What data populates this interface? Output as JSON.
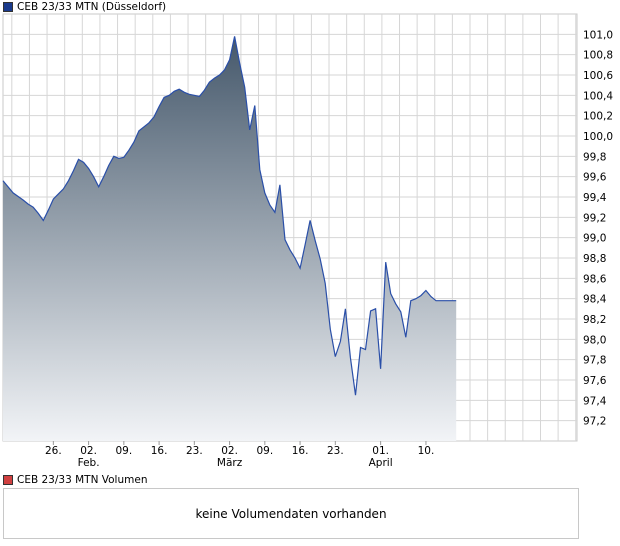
{
  "colors": {
    "price_swatch": "#1a3a8c",
    "volume_swatch": "#d04040",
    "line": "#2a4fa8",
    "fill_top": "#45586b",
    "fill_bottom": "#f2f4f7",
    "grid": "#d6d6d6"
  },
  "chart_data": {
    "type": "area",
    "title": "CEB 23/33 MTN (Düsseldorf)",
    "ylim": [
      97.0,
      101.2
    ],
    "yticks": [
      "97,2",
      "97,4",
      "97,6",
      "97,8",
      "98,0",
      "98,2",
      "98,4",
      "98,6",
      "98,8",
      "99,0",
      "99,2",
      "99,4",
      "99,6",
      "99,8",
      "100,0",
      "100,2",
      "100,4",
      "100,6",
      "100,8",
      "101,0"
    ],
    "ytick_values": [
      97.2,
      97.4,
      97.6,
      97.8,
      98.0,
      98.2,
      98.4,
      98.6,
      98.8,
      99.0,
      99.2,
      99.4,
      99.6,
      99.8,
      100.0,
      100.2,
      100.4,
      100.6,
      100.8,
      101.0
    ],
    "x_day_range": [
      0,
      114
    ],
    "xticks": [
      {
        "label": "26.",
        "sub": "",
        "day": 10
      },
      {
        "label": "02.",
        "sub": "Feb.",
        "day": 17
      },
      {
        "label": "09.",
        "sub": "",
        "day": 24
      },
      {
        "label": "16.",
        "sub": "",
        "day": 31
      },
      {
        "label": "23.",
        "sub": "",
        "day": 38
      },
      {
        "label": "02.",
        "sub": "März",
        "day": 45
      },
      {
        "label": "09.",
        "sub": "",
        "day": 52
      },
      {
        "label": "16.",
        "sub": "",
        "day": 59
      },
      {
        "label": "23.",
        "sub": "",
        "day": 66
      },
      {
        "label": "01.",
        "sub": "April",
        "day": 75
      },
      {
        "label": "10.",
        "sub": "",
        "day": 84
      }
    ],
    "grid": true,
    "series": [
      {
        "x": [
          0,
          1,
          2,
          4,
          5,
          6,
          7,
          8,
          9,
          10,
          11,
          12,
          13,
          14,
          15,
          16,
          17,
          18,
          19,
          20,
          21,
          22,
          23,
          24,
          25,
          26,
          27,
          28,
          29,
          30,
          31,
          32,
          33,
          34,
          35,
          36,
          37,
          38,
          39,
          40,
          41,
          42,
          43,
          44,
          45,
          46,
          47,
          48,
          49,
          50,
          51,
          52,
          53,
          54,
          55,
          56,
          57,
          58,
          59,
          60,
          61,
          62,
          63,
          64,
          65,
          66,
          67,
          68,
          69,
          70,
          71,
          72,
          73,
          74,
          75,
          76,
          77,
          78,
          79,
          80,
          81,
          82,
          83,
          84,
          85,
          86,
          87,
          88,
          89,
          90
        ],
        "y": [
          99.56,
          99.5,
          99.44,
          99.37,
          99.33,
          99.3,
          99.24,
          99.17,
          99.27,
          99.38,
          99.43,
          99.48,
          99.56,
          99.66,
          99.77,
          99.74,
          99.68,
          99.6,
          99.5,
          99.6,
          99.71,
          99.8,
          99.78,
          99.79,
          99.86,
          99.94,
          100.05,
          100.09,
          100.13,
          100.19,
          100.29,
          100.38,
          100.4,
          100.44,
          100.46,
          100.43,
          100.41,
          100.4,
          100.39,
          100.45,
          100.53,
          100.57,
          100.6,
          100.65,
          100.75,
          100.98,
          100.72,
          100.48,
          100.06,
          100.3,
          99.67,
          99.44,
          99.32,
          99.25,
          99.52,
          98.98,
          98.88,
          98.8,
          98.7,
          98.93,
          99.17,
          98.97,
          98.79,
          98.55,
          98.1,
          97.83,
          97.98,
          98.3,
          97.82,
          97.45,
          97.92,
          97.9,
          98.28,
          98.3,
          97.71,
          98.76,
          98.45,
          98.35,
          98.27,
          98.02,
          98.38,
          98.4,
          98.43,
          98.48,
          98.42,
          98.38,
          98.38,
          98.38,
          98.38,
          98.38
        ]
      }
    ]
  },
  "legend": {
    "price": "CEB 23/33 MTN (Düsseldorf)",
    "volume": "CEB 23/33 MTN Volumen"
  },
  "volume_panel": {
    "message": "keine Volumendaten vorhanden"
  }
}
